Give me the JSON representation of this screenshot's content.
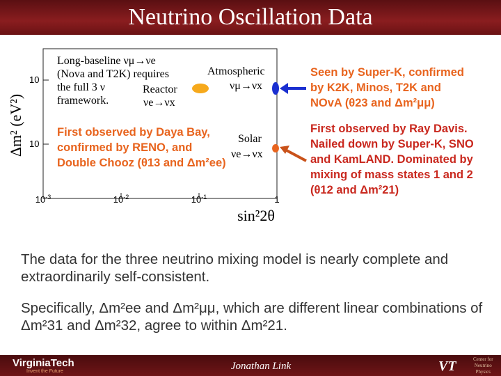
{
  "header": {
    "title": "Neutrino Oscillation Data"
  },
  "plot": {
    "y_label": "Δm² (eV²)",
    "x_label": "sin²2θ",
    "x_ticks": [
      {
        "base": "10",
        "exp": "-3"
      },
      {
        "base": "10",
        "exp": "-2"
      },
      {
        "base": "10",
        "exp": "-1"
      },
      {
        "base": "1"
      }
    ],
    "y_ticks": [
      "10",
      "10"
    ],
    "annotations": {
      "long_baseline": [
        "Long-baseline νμ→νe",
        "(Nova and T2K) requires",
        "the full 3 ν",
        "framework."
      ],
      "reactor": "Reactor",
      "reactor_channel": "νe→νx",
      "atmospheric": "Atmospheric",
      "atmospheric_channel": "νμ→νx",
      "solar": "Solar",
      "solar_channel": "νe→νx",
      "daya_bay": [
        "First observed by Daya Bay,",
        "confirmed by RENO, and",
        "Double Chooz (θ13 and Δm²ee)"
      ]
    }
  },
  "callouts": [
    {
      "lines": [
        "Seen by Super-K, confirmed",
        "by K2K, Minos, T2K and",
        "NOvA (θ23 and Δm²μμ)"
      ]
    },
    {
      "lines": [
        "First observed by Ray Davis.",
        "Nailed down by Super-K, SNO",
        "and KamLAND.  Dominated by",
        "mixing of mass states 1 and 2",
        "(θ12 and Δm²21)"
      ]
    }
  ],
  "body": [
    "The data for the three neutrino mixing model is nearly complete and extraordinarily self-consistent.",
    "Specifically, Δm²ee and Δm²μμ, which are different linear combinations of Δm²31 and Δm²32, agree to within Δm²21."
  ],
  "footer": {
    "author": "Jonathan Link",
    "logo": "VirginiaTech",
    "tagline": "Invent the Future",
    "center": [
      "Center for",
      "Neutrino",
      "Physics"
    ]
  }
}
